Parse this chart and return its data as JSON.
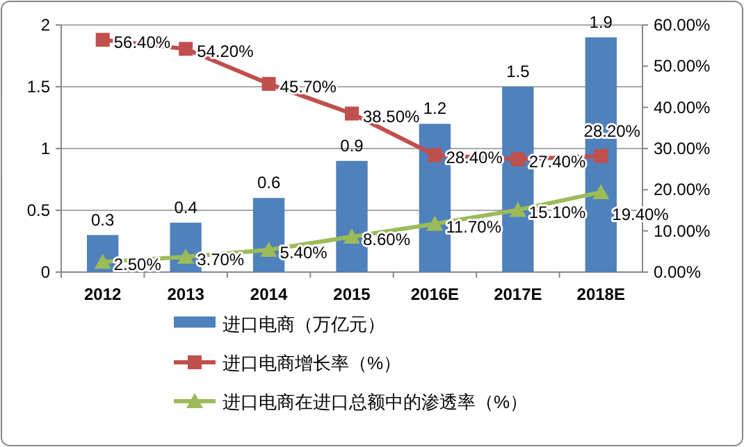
{
  "chart_data": {
    "type": "bar",
    "categories": [
      "2012",
      "2013",
      "2014",
      "2015",
      "2016E",
      "2017E",
      "2018E"
    ],
    "series": [
      {
        "name": "进口电商（万亿元）",
        "color": "#4f81bd",
        "values": [
          0.3,
          0.4,
          0.6,
          0.9,
          1.2,
          1.5,
          1.9
        ],
        "value_labels": [
          "0.3",
          "0.4",
          "0.6",
          "0.9",
          "1.2",
          "1.5",
          "1.9"
        ]
      },
      {
        "name": "进口电商增长率（%）",
        "type": "line",
        "axis": "y2",
        "color": "#c0504d",
        "marker": "square",
        "values": [
          56.4,
          54.2,
          45.7,
          38.5,
          28.4,
          27.4,
          28.2
        ],
        "value_labels": [
          "56.40%",
          "54.20%",
          "45.70%",
          "38.50%",
          "28.40%",
          "27.40%",
          "28.20%"
        ]
      },
      {
        "name": "进口电商在进口总额中的渗透率（%）",
        "type": "line",
        "axis": "y2",
        "color": "#9bbb59",
        "marker": "triangle",
        "values": [
          2.5,
          3.7,
          5.4,
          8.6,
          11.7,
          15.1,
          19.4
        ],
        "value_labels": [
          "2.50%",
          "3.70%",
          "5.40%",
          "8.60%",
          "11.70%",
          "15.10%",
          "19.40%"
        ]
      }
    ],
    "ylim": [
      0,
      2
    ],
    "yticks": [
      0,
      0.5,
      1,
      1.5,
      2
    ],
    "y2lim": [
      0,
      60
    ],
    "y2ticks": [
      {
        "value": 0,
        "label": "0.00%"
      },
      {
        "value": 10,
        "label": "10.00%"
      },
      {
        "value": 20,
        "label": "20.00%"
      },
      {
        "value": 30,
        "label": "30.00%"
      },
      {
        "value": 40,
        "label": "40.00%"
      },
      {
        "value": 50,
        "label": "50.00%"
      },
      {
        "value": 60,
        "label": "60.00%"
      }
    ],
    "grid": "y",
    "legend": "bottom"
  }
}
